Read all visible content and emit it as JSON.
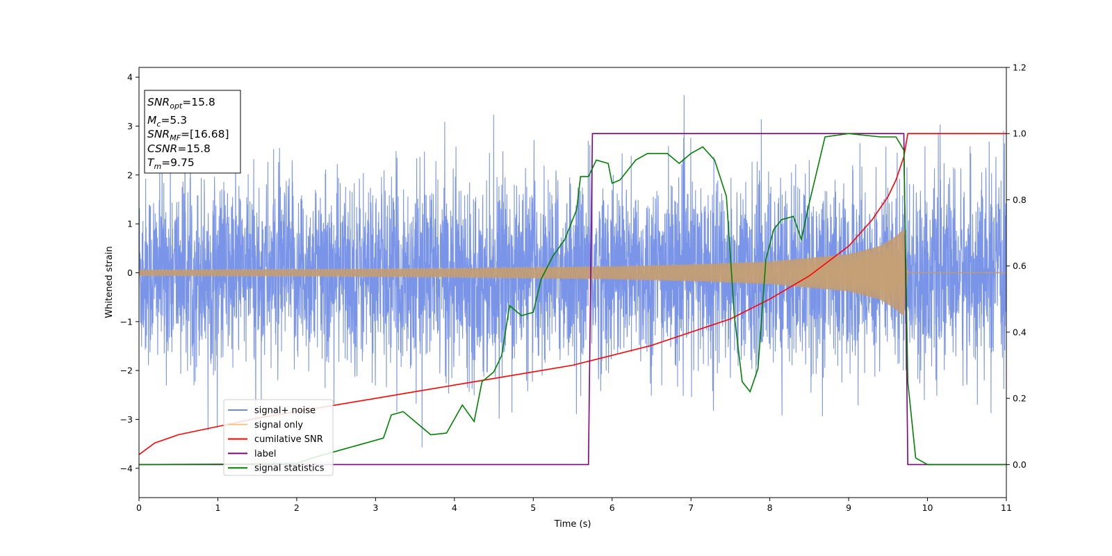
{
  "chart_data": {
    "type": "line",
    "xlabel": "Time (s)",
    "ylabel": "Whitened strain",
    "xlim": [
      0,
      11
    ],
    "ylim": [
      -4.6,
      4.2
    ],
    "y2lim": [
      -0.1,
      1.2
    ],
    "grid": false,
    "legend_position": "lower-left",
    "x_ticks": [
      "0",
      "1",
      "2",
      "3",
      "4",
      "5",
      "6",
      "7",
      "8",
      "9",
      "10",
      "11"
    ],
    "y_ticks": [
      "4",
      "3",
      "2",
      "1",
      "0",
      "−1",
      "−2",
      "−3",
      "−4"
    ],
    "y2_ticks": [
      "1.2",
      "1.0",
      "0.8",
      "0.6",
      "0.4",
      "0.2",
      "0.0"
    ],
    "annotation": {
      "snr_opt": "=15.8",
      "mc": "=5.3",
      "snr_mf": "=[16.68]",
      "csnr": "=15.8",
      "tm": "=9.75"
    },
    "series": [
      {
        "name": "signal+ noise",
        "color": "#6b89e6",
        "axis": "left",
        "description": "dense whitened noise band, roughly within ±2.5 with spikes to ±3.8 across 0–11 s"
      },
      {
        "name": "signal only",
        "color": "#f5c77e",
        "axis": "left",
        "envelope": [
          [
            0,
            0.06
          ],
          [
            2,
            0.07
          ],
          [
            4,
            0.09
          ],
          [
            6,
            0.13
          ],
          [
            7,
            0.17
          ],
          [
            8,
            0.23
          ],
          [
            9,
            0.38
          ],
          [
            9.4,
            0.55
          ],
          [
            9.6,
            0.75
          ],
          [
            9.7,
            0.9
          ],
          [
            9.75,
            0.0
          ],
          [
            11,
            0.0
          ]
        ]
      },
      {
        "name": "cumilative SNR",
        "color": "#ff0000",
        "axis": "right",
        "points": [
          [
            0,
            0.03
          ],
          [
            0.2,
            0.065
          ],
          [
            0.5,
            0.09
          ],
          [
            1,
            0.115
          ],
          [
            1.5,
            0.14
          ],
          [
            2,
            0.16
          ],
          [
            2.5,
            0.18
          ],
          [
            3,
            0.2
          ],
          [
            3.5,
            0.22
          ],
          [
            4,
            0.24
          ],
          [
            4.5,
            0.26
          ],
          [
            5,
            0.28
          ],
          [
            5.5,
            0.3
          ],
          [
            6,
            0.33
          ],
          [
            6.5,
            0.36
          ],
          [
            7,
            0.4
          ],
          [
            7.5,
            0.44
          ],
          [
            8,
            0.5
          ],
          [
            8.5,
            0.57
          ],
          [
            9,
            0.66
          ],
          [
            9.3,
            0.74
          ],
          [
            9.5,
            0.81
          ],
          [
            9.6,
            0.86
          ],
          [
            9.7,
            0.93
          ],
          [
            9.75,
            1.0
          ],
          [
            11,
            1.0
          ]
        ]
      },
      {
        "name": "label",
        "color": "#800080",
        "axis": "right",
        "points": [
          [
            0,
            0
          ],
          [
            5.7,
            0
          ],
          [
            5.75,
            1.0
          ],
          [
            9.7,
            1.0
          ],
          [
            9.75,
            0
          ],
          [
            11,
            0
          ]
        ]
      },
      {
        "name": "signal statistics",
        "color": "#008000",
        "axis": "right",
        "points": [
          [
            0,
            0
          ],
          [
            1,
            0.001
          ],
          [
            2,
            0.003
          ],
          [
            2.2,
            0.02
          ],
          [
            2.5,
            0.04
          ],
          [
            2.8,
            0.06
          ],
          [
            3.1,
            0.08
          ],
          [
            3.2,
            0.15
          ],
          [
            3.35,
            0.16
          ],
          [
            3.5,
            0.13
          ],
          [
            3.7,
            0.09
          ],
          [
            3.9,
            0.095
          ],
          [
            4.1,
            0.18
          ],
          [
            4.25,
            0.13
          ],
          [
            4.35,
            0.25
          ],
          [
            4.5,
            0.28
          ],
          [
            4.6,
            0.33
          ],
          [
            4.7,
            0.48
          ],
          [
            4.85,
            0.45
          ],
          [
            5.0,
            0.46
          ],
          [
            5.1,
            0.56
          ],
          [
            5.25,
            0.63
          ],
          [
            5.4,
            0.68
          ],
          [
            5.55,
            0.77
          ],
          [
            5.6,
            0.87
          ],
          [
            5.7,
            0.87
          ],
          [
            5.8,
            0.92
          ],
          [
            5.95,
            0.91
          ],
          [
            6.0,
            0.85
          ],
          [
            6.1,
            0.86
          ],
          [
            6.3,
            0.92
          ],
          [
            6.45,
            0.94
          ],
          [
            6.7,
            0.94
          ],
          [
            6.85,
            0.91
          ],
          [
            7.0,
            0.94
          ],
          [
            7.15,
            0.96
          ],
          [
            7.3,
            0.92
          ],
          [
            7.45,
            0.81
          ],
          [
            7.55,
            0.45
          ],
          [
            7.65,
            0.25
          ],
          [
            7.75,
            0.22
          ],
          [
            7.85,
            0.29
          ],
          [
            7.95,
            0.62
          ],
          [
            8.05,
            0.71
          ],
          [
            8.15,
            0.74
          ],
          [
            8.3,
            0.75
          ],
          [
            8.4,
            0.68
          ],
          [
            8.5,
            0.79
          ],
          [
            8.7,
            0.99
          ],
          [
            9.0,
            1.0
          ],
          [
            9.4,
            0.99
          ],
          [
            9.6,
            0.99
          ],
          [
            9.7,
            0.95
          ],
          [
            9.75,
            0.25
          ],
          [
            9.85,
            0.02
          ],
          [
            10.0,
            0.0
          ],
          [
            11,
            0.0
          ]
        ]
      }
    ]
  }
}
